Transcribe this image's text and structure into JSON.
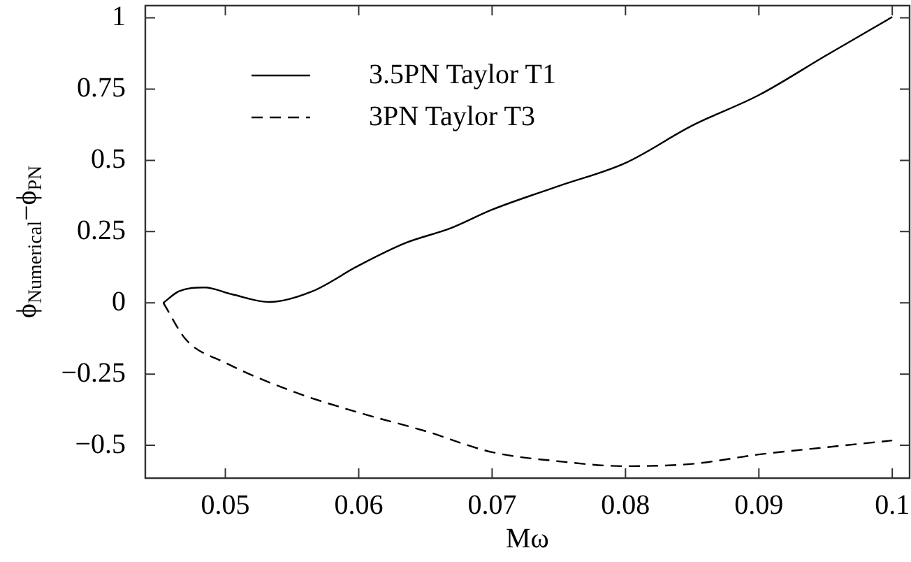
{
  "chart_data": {
    "type": "line",
    "xlabel": "Mω",
    "ylabel": "ϕ$_{Numerical}$−ϕ$_{PN}$",
    "xlim": [
      0.044,
      0.1013
    ],
    "ylim": [
      -0.615,
      1.043
    ],
    "xticks": [
      0.05,
      0.06,
      0.07,
      0.08,
      0.09,
      0.1
    ],
    "yticks": [
      -0.5,
      -0.25,
      0,
      0.25,
      0.5,
      0.75,
      1
    ],
    "legend": "top left",
    "marker": "none",
    "series": [
      {
        "name": "3.5PN Taylor T1",
        "color": "#000000",
        "line_style": "solid",
        "x": [
          0.04535,
          0.0465,
          0.04845,
          0.0505,
          0.0533,
          0.0565,
          0.06,
          0.0635,
          0.0669,
          0.07,
          0.075,
          0.08,
          0.085,
          0.09,
          0.095,
          0.1
        ],
        "values": [
          0,
          0.04,
          0.054,
          0.03,
          0.003,
          0.04,
          0.131,
          0.21,
          0.262,
          0.327,
          0.41,
          0.491,
          0.622,
          0.729,
          0.867,
          1.003
        ]
      },
      {
        "name": "3PN Taylor T3",
        "color": "#000000",
        "line_style": "dashed",
        "x": [
          0.04535,
          0.04707,
          0.05,
          0.055,
          0.06,
          0.065,
          0.07,
          0.075,
          0.08,
          0.085,
          0.09,
          0.095,
          0.1
        ],
        "values": [
          0,
          -0.13,
          -0.21,
          -0.31,
          -0.385,
          -0.45,
          -0.524,
          -0.556,
          -0.573,
          -0.565,
          -0.532,
          -0.507,
          -0.483
        ]
      }
    ]
  }
}
